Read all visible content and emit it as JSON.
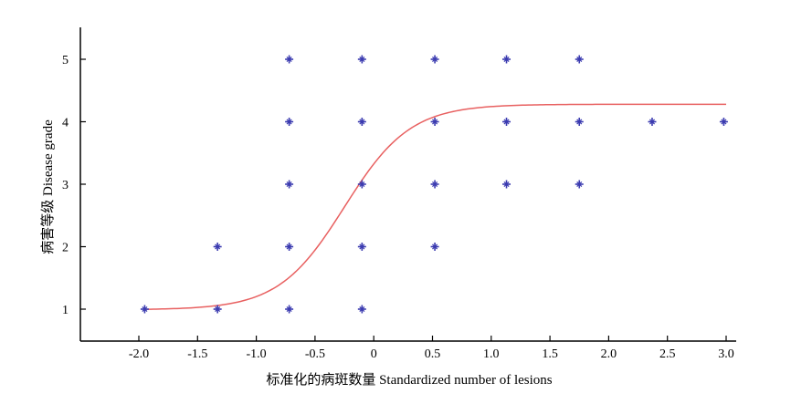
{
  "chart_data": {
    "type": "scatter",
    "xlabel": "标准化的病斑数量 Standardized number of lesions",
    "ylabel": "病害等级 Disease grade",
    "xlim": [
      -2.5,
      3.1
    ],
    "ylim": [
      0.5,
      5.5
    ],
    "x_ticks": [
      "-2.0",
      "-1.5",
      "-1.0",
      "-0.5",
      "0",
      "0.5",
      "1.0",
      "1.5",
      "2.0",
      "2.5",
      "3.0"
    ],
    "y_ticks": [
      "1",
      "2",
      "3",
      "4",
      "5"
    ],
    "grid": false,
    "legend": "none",
    "points": [
      {
        "x": -1.95,
        "y": 1
      },
      {
        "x": -1.33,
        "y": 1
      },
      {
        "x": -1.33,
        "y": 2
      },
      {
        "x": -0.72,
        "y": 1
      },
      {
        "x": -0.72,
        "y": 2
      },
      {
        "x": -0.72,
        "y": 3
      },
      {
        "x": -0.72,
        "y": 4
      },
      {
        "x": -0.72,
        "y": 5
      },
      {
        "x": -0.1,
        "y": 1
      },
      {
        "x": -0.1,
        "y": 2
      },
      {
        "x": -0.1,
        "y": 3
      },
      {
        "x": -0.1,
        "y": 4
      },
      {
        "x": -0.1,
        "y": 5
      },
      {
        "x": 0.52,
        "y": 2
      },
      {
        "x": 0.52,
        "y": 3
      },
      {
        "x": 0.52,
        "y": 4
      },
      {
        "x": 0.52,
        "y": 5
      },
      {
        "x": 1.13,
        "y": 3
      },
      {
        "x": 1.13,
        "y": 4
      },
      {
        "x": 1.13,
        "y": 5
      },
      {
        "x": 1.75,
        "y": 3
      },
      {
        "x": 1.75,
        "y": 4
      },
      {
        "x": 1.75,
        "y": 5
      },
      {
        "x": 2.37,
        "y": 4
      },
      {
        "x": 2.98,
        "y": 4
      }
    ],
    "fit_curve": {
      "type": "logistic",
      "lower": 0.99,
      "upper": 4.28,
      "center": -0.25,
      "scale": 0.28,
      "x_range": [
        -1.95,
        3.0
      ]
    },
    "colors": {
      "points": "#3b3bb0",
      "curve": "#e86060",
      "axis": "#000000"
    }
  }
}
